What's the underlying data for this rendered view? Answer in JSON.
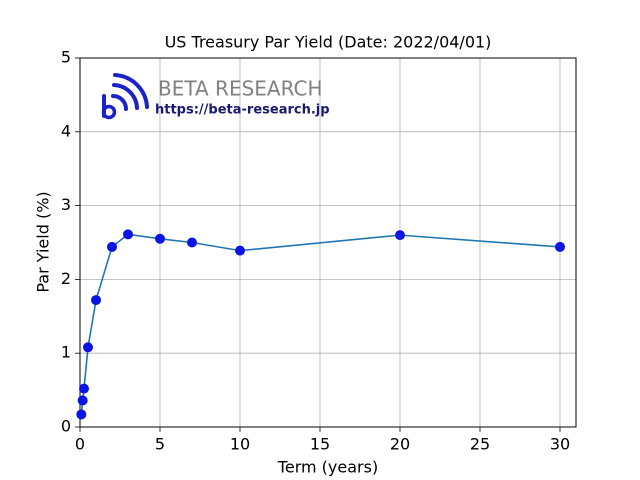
{
  "chart_data": {
    "type": "line",
    "title": "US Treasury Par Yield (Date: 2022/04/01)",
    "xlabel": "Term (years)",
    "ylabel": "Par Yield (%)",
    "logo_text": "BETA RESEARCH",
    "logo_url": "https://beta-research.jp",
    "x": [
      0.083,
      0.167,
      0.25,
      0.5,
      1,
      2,
      3,
      5,
      7,
      10,
      20,
      30
    ],
    "series": [
      {
        "color": "#1f77b4",
        "marker_color": "#0a14e6",
        "values": [
          0.17,
          0.36,
          0.52,
          1.08,
          1.72,
          2.44,
          2.61,
          2.55,
          2.5,
          2.39,
          2.6,
          2.44
        ]
      }
    ],
    "xlim": [
      0,
      31
    ],
    "ylim": [
      0,
      5
    ],
    "xticks": [
      0,
      5,
      10,
      15,
      20,
      25,
      30
    ],
    "yticks": [
      0,
      1,
      2,
      3,
      4,
      5
    ],
    "grid": true
  }
}
